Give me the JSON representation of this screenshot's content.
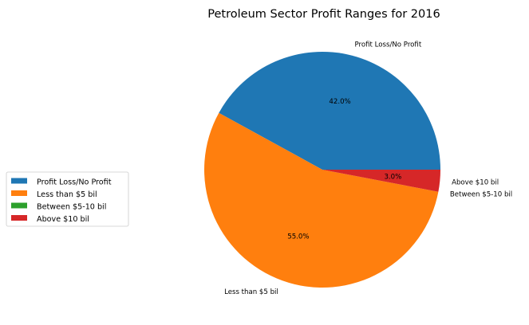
{
  "chart_data": {
    "type": "pie",
    "title": "Petroleum Sector Profit Ranges for 2016",
    "slices": [
      {
        "label": "Profit Loss/No Profit",
        "value": 42.0,
        "pct_label": "42.0%",
        "color": "#1f77b4"
      },
      {
        "label": "Less than $5 bil",
        "value": 55.0,
        "pct_label": "55.0%",
        "color": "#ff7f0e"
      },
      {
        "label": "Between $5-10 bil",
        "value": 0.0,
        "pct_label": "",
        "color": "#2ca02c"
      },
      {
        "label": "Above $10 bil",
        "value": 3.0,
        "pct_label": "3.0%",
        "color": "#d62728"
      }
    ],
    "start_angle_deg": 0,
    "direction": "counterclockwise",
    "legend": {
      "placement": "left",
      "entries": [
        "Profit Loss/No Profit",
        "Less than $5 bil",
        "Between $5-10 bil",
        "Above $10 bil"
      ]
    }
  }
}
